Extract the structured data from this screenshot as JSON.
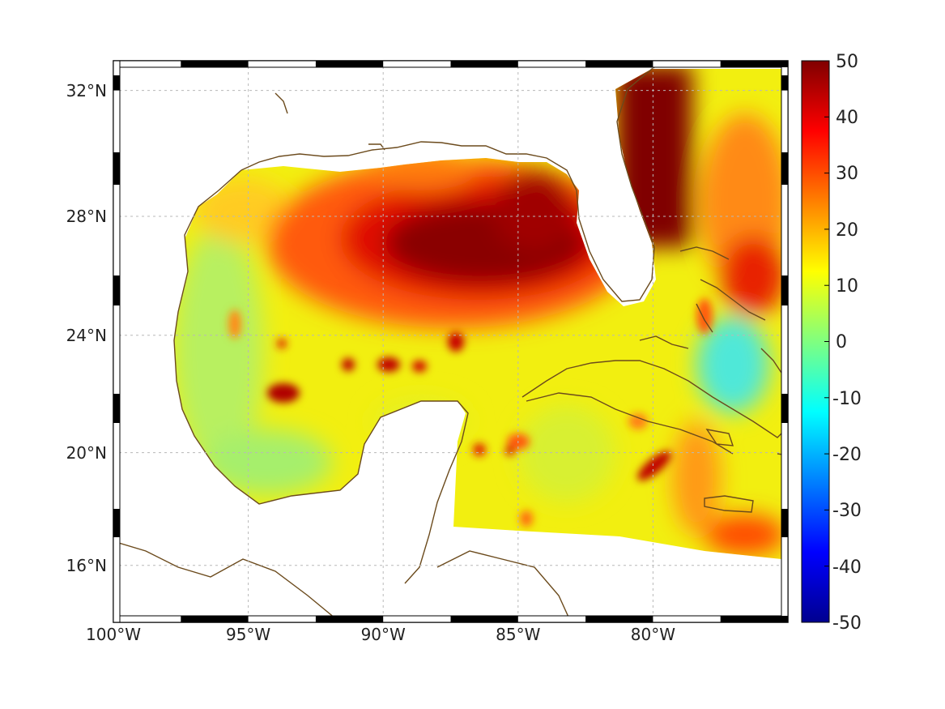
{
  "chart_data": {
    "type": "heatmap",
    "title": "",
    "xlabel": "",
    "ylabel": "",
    "map": {
      "projection": "mercator",
      "lon_range": [
        -100,
        -75
      ],
      "lat_range": [
        14.2,
        33
      ],
      "lon_ticks": [
        -100,
        -95,
        -90,
        -85,
        -80
      ],
      "lat_ticks": [
        16,
        20,
        24,
        28,
        32
      ],
      "lon_tick_labels": [
        "100°W",
        "95°W",
        "90°W",
        "85°W",
        "80°W"
      ],
      "lat_tick_labels": [
        "16°N",
        "20°N",
        "24°N",
        "28°N",
        "32°N"
      ],
      "grid": true,
      "frame": "black-white-alternating",
      "coastline_color": "#6b4a1c"
    },
    "colorbar": {
      "colormap": "jet",
      "range": [
        -50,
        50
      ],
      "ticks": [
        50,
        40,
        30,
        20,
        10,
        0,
        -10,
        -20,
        -30,
        -40,
        -50
      ],
      "tick_labels": [
        "50",
        "40",
        "30",
        "20",
        "10",
        "0",
        "-10",
        "-20",
        "-30",
        "-40",
        "-50"
      ],
      "position": "right"
    },
    "features": [
      {
        "lon": -87.5,
        "lat": 27.2,
        "value": 50
      },
      {
        "lon": -85.0,
        "lat": 26.8,
        "value": 50
      },
      {
        "lon": -89.5,
        "lat": 26.5,
        "value": 38
      },
      {
        "lon": -91.5,
        "lat": 26.0,
        "value": 30
      },
      {
        "lon": -83.5,
        "lat": 29.0,
        "value": 45
      },
      {
        "lon": -80.0,
        "lat": 30.5,
        "value": 50
      },
      {
        "lon": -78.0,
        "lat": 28.5,
        "value": 22
      },
      {
        "lon": -76.5,
        "lat": 26.0,
        "value": 32
      },
      {
        "lon": -96.5,
        "lat": 25.0,
        "value": 5
      },
      {
        "lon": -95.0,
        "lat": 20.0,
        "value": 4
      },
      {
        "lon": -93.8,
        "lat": 22.3,
        "value": 38
      },
      {
        "lon": -90.0,
        "lat": 23.0,
        "value": 42
      },
      {
        "lon": -87.5,
        "lat": 23.8,
        "value": 35
      },
      {
        "lon": -80.0,
        "lat": 19.5,
        "value": 40
      },
      {
        "lon": -77.0,
        "lat": 23.0,
        "value": -8
      },
      {
        "lon": -76.5,
        "lat": 16.8,
        "value": 30
      },
      {
        "lon": -86.0,
        "lat": 21.0,
        "value": 14
      }
    ]
  }
}
